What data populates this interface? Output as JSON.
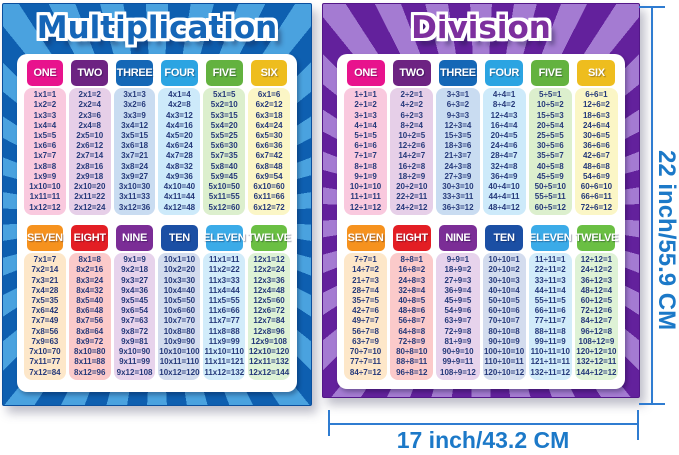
{
  "annotations": {
    "height_label": "22 inch/55.9 CM",
    "width_label": "17 inch/43.2 CM",
    "label_color": "#1c79c8",
    "line_color": "#2f7cd1"
  },
  "posters": [
    {
      "title": "Multiplication",
      "colors": {
        "title": "#1566b8",
        "ray_dark": "#0e5fb0",
        "ray_light": "#4aa2df",
        "edge": "#0a4f9e"
      },
      "sections": [
        {
          "columns": [
            {
              "header": "ONE",
              "header_bg": "#e8138d",
              "body_bg": "#f9c9de",
              "cells": [
                "1x1=1",
                "1x2=2",
                "1x3=3",
                "1x4=4",
                "1x5=5",
                "1x6=6",
                "1x7=7",
                "1x8=8",
                "1x9=9",
                "1x10=10",
                "1x11=11",
                "1x12=12"
              ]
            },
            {
              "header": "TWO",
              "header_bg": "#6d2382",
              "body_bg": "#e6cfe8",
              "cells": [
                "2x1=2",
                "2x2=4",
                "2x3=6",
                "2x4=8",
                "2x5=10",
                "2x6=12",
                "2x7=14",
                "2x8=16",
                "2x9=18",
                "2x10=20",
                "2x11=22",
                "2x12=24"
              ]
            },
            {
              "header": "THREE",
              "header_bg": "#1467b6",
              "body_bg": "#c9dcf1",
              "cells": [
                "3x1=3",
                "3x2=6",
                "3x3=9",
                "3x4=12",
                "3x5=15",
                "3x6=18",
                "3x7=21",
                "3x8=24",
                "3x9=27",
                "3x10=30",
                "3x11=33",
                "3x12=36"
              ]
            },
            {
              "header": "FOUR",
              "header_bg": "#2ba4e2",
              "body_bg": "#cdeafa",
              "cells": [
                "4x1=4",
                "4x2=8",
                "4x3=12",
                "4x4=16",
                "4x5=20",
                "4x6=24",
                "4x7=28",
                "4x8=32",
                "4x9=36",
                "4x10=40",
                "4x11=44",
                "4x12=48"
              ]
            },
            {
              "header": "FIVE",
              "header_bg": "#63b23f",
              "body_bg": "#dcefcd",
              "cells": [
                "5x1=5",
                "5x2=10",
                "5x3=15",
                "5x4=20",
                "5x5=25",
                "5x6=30",
                "5x7=35",
                "5x8=40",
                "5x9=45",
                "5x10=50",
                "5x11=55",
                "5x12=60"
              ]
            },
            {
              "header": "SIX",
              "header_bg": "#eebd1e",
              "body_bg": "#fbf6c6",
              "cells": [
                "6x1=6",
                "6x2=12",
                "6x3=18",
                "6x4=24",
                "6x5=30",
                "6x6=36",
                "6x7=42",
                "6x8=48",
                "6x9=54",
                "6x10=60",
                "6x11=66",
                "6x12=72"
              ]
            }
          ]
        },
        {
          "columns": [
            {
              "header": "SEVEN",
              "header_bg": "#f6921e",
              "body_bg": "#fde7c9",
              "cells": [
                "7x1=7",
                "7x2=14",
                "7x3=21",
                "7x4=28",
                "7x5=35",
                "7x6=42",
                "7x7=49",
                "7x8=56",
                "7x9=63",
                "7x10=70",
                "7x11=77",
                "7x12=84"
              ]
            },
            {
              "header": "EIGHT",
              "header_bg": "#e31e24",
              "body_bg": "#fbcaca",
              "cells": [
                "8x1=8",
                "8x2=16",
                "8x3=24",
                "8x4=32",
                "8x5=40",
                "8x6=48",
                "8x7=56",
                "8x8=64",
                "8x9=72",
                "8x10=80",
                "8x11=88",
                "8x12=96"
              ]
            },
            {
              "header": "NINE",
              "header_bg": "#7b2d96",
              "body_bg": "#e7d3ec",
              "cells": [
                "9x1=9",
                "9x2=18",
                "9x3=27",
                "9x4=36",
                "9x5=45",
                "9x6=54",
                "9x7=63",
                "9x8=72",
                "9x9=81",
                "9x10=90",
                "9x11=99",
                "9x12=108"
              ]
            },
            {
              "header": "TEN",
              "header_bg": "#1b4fa4",
              "body_bg": "#d3dcee",
              "cells": [
                "10x1=10",
                "10x2=20",
                "10x3=30",
                "10x4=40",
                "10x5=50",
                "10x6=60",
                "10x7=70",
                "10x8=80",
                "10x9=90",
                "10x10=100",
                "10x11=110",
                "10x12=120"
              ]
            },
            {
              "header": "ELEVEN",
              "header_bg": "#3babe8",
              "body_bg": "#d2ecfa",
              "cells": [
                "11x1=11",
                "11x2=22",
                "11x3=33",
                "11x4=44",
                "11x5=55",
                "11x6=66",
                "11x7=77",
                "11x8=88",
                "11x9=99",
                "11x10=110",
                "11x11=121",
                "11x12=132"
              ]
            },
            {
              "header": "TWELVE",
              "header_bg": "#6abf43",
              "body_bg": "#def2d6",
              "cells": [
                "12x1=12",
                "12x2=24",
                "12x3=36",
                "12x4=48",
                "12x5=60",
                "12x6=72",
                "12x7=84",
                "12x8=96",
                "12x9=108",
                "12x10=120",
                "12x11=132",
                "12x12=144"
              ]
            }
          ]
        }
      ]
    },
    {
      "title": "Division",
      "colors": {
        "title": "#7d2f9e",
        "ray_dark": "#63219c",
        "ray_light": "#a47bd2",
        "edge": "#531788"
      },
      "sections": [
        {
          "columns": [
            {
              "header": "ONE",
              "header_bg": "#e8138d",
              "body_bg": "#f9c9de",
              "cells": [
                "1÷1=1",
                "2÷1=2",
                "3÷1=3",
                "4÷1=4",
                "5÷1=5",
                "6÷1=6",
                "7÷1=7",
                "8÷1=8",
                "9÷1=9",
                "10÷1=10",
                "11÷1=11",
                "12÷1=12"
              ]
            },
            {
              "header": "TWO",
              "header_bg": "#6d2382",
              "body_bg": "#e6cfe8",
              "cells": [
                "2÷2=1",
                "4÷2=2",
                "6÷2=3",
                "8÷2=4",
                "10÷2=5",
                "12÷2=6",
                "14÷2=7",
                "16÷2=8",
                "18÷2=9",
                "20÷2=10",
                "22÷2=11",
                "24÷2=12"
              ]
            },
            {
              "header": "THREE",
              "header_bg": "#1467b6",
              "body_bg": "#c9dcf1",
              "cells": [
                "3÷3=1",
                "6÷3=2",
                "9÷3=3",
                "12÷3=4",
                "15÷3=5",
                "18÷3=6",
                "21÷3=7",
                "24÷3=8",
                "27÷3=9",
                "30÷3=10",
                "33÷3=11",
                "36÷3=12"
              ]
            },
            {
              "header": "FOUR",
              "header_bg": "#2ba4e2",
              "body_bg": "#cdeafa",
              "cells": [
                "4÷4=1",
                "8÷4=2",
                "12÷4=3",
                "16÷4=4",
                "20÷4=5",
                "24÷4=6",
                "28÷4=7",
                "32÷4=8",
                "36÷4=9",
                "40÷4=10",
                "44÷4=11",
                "48÷4=12"
              ]
            },
            {
              "header": "FIVE",
              "header_bg": "#63b23f",
              "body_bg": "#dcefcd",
              "cells": [
                "5÷5=1",
                "10÷5=2",
                "15÷5=3",
                "20÷5=4",
                "25÷5=5",
                "30÷5=6",
                "35÷5=7",
                "40÷5=8",
                "45÷5=9",
                "50÷5=10",
                "55÷5=11",
                "60÷5=12"
              ]
            },
            {
              "header": "SIX",
              "header_bg": "#eebd1e",
              "body_bg": "#fbf6c6",
              "cells": [
                "6÷6=1",
                "12÷6=2",
                "18÷6=3",
                "24÷6=4",
                "30÷6=5",
                "36÷6=6",
                "42÷6=7",
                "48÷6=8",
                "54÷6=9",
                "60÷6=10",
                "66÷6=11",
                "72÷6=12"
              ]
            }
          ]
        },
        {
          "columns": [
            {
              "header": "SEVEN",
              "header_bg": "#f6921e",
              "body_bg": "#fde7c9",
              "cells": [
                "7÷7=1",
                "14÷7=2",
                "21÷7=3",
                "28÷7=4",
                "35÷7=5",
                "42÷7=6",
                "49÷7=7",
                "56÷7=8",
                "63÷7=9",
                "70÷7=10",
                "77÷7=11",
                "84÷7=12"
              ]
            },
            {
              "header": "EIGHT",
              "header_bg": "#e31e24",
              "body_bg": "#fbcaca",
              "cells": [
                "8÷8=1",
                "16÷8=2",
                "24÷8=3",
                "32÷8=4",
                "40÷8=5",
                "48÷8=6",
                "56÷8=7",
                "64÷8=8",
                "72÷8=9",
                "80÷8=10",
                "88÷8=11",
                "96÷8=12"
              ]
            },
            {
              "header": "NINE",
              "header_bg": "#7b2d96",
              "body_bg": "#e7d3ec",
              "cells": [
                "9÷9=1",
                "18÷9=2",
                "27÷9=3",
                "36÷9=4",
                "45÷9=5",
                "54÷9=6",
                "63÷9=7",
                "72÷9=8",
                "81÷9=9",
                "90÷9=10",
                "99÷9=11",
                "108÷9=12"
              ]
            },
            {
              "header": "TEN",
              "header_bg": "#1b4fa4",
              "body_bg": "#d3dcee",
              "cells": [
                "10÷10=1",
                "20÷10=2",
                "30÷10=3",
                "40÷10=4",
                "50÷10=5",
                "60÷10=6",
                "70÷10=7",
                "80÷10=8",
                "90÷10=9",
                "100÷10=10",
                "110÷10=11",
                "120÷10=12"
              ]
            },
            {
              "header": "ELEVEN",
              "header_bg": "#3babe8",
              "body_bg": "#d2ecfa",
              "cells": [
                "11÷11=1",
                "22÷11=2",
                "33÷11=3",
                "44÷11=4",
                "55÷11=5",
                "66÷11=6",
                "77÷11=7",
                "88÷11=8",
                "99÷11=9",
                "110÷11=10",
                "121÷11=11",
                "132÷11=12"
              ]
            },
            {
              "header": "TWELVE",
              "header_bg": "#6abf43",
              "body_bg": "#def2d6",
              "cells": [
                "12÷12=1",
                "24÷12=2",
                "36÷12=3",
                "48÷12=4",
                "60÷12=5",
                "72÷12=6",
                "84÷12=7",
                "96÷12=8",
                "108÷12=9",
                "120÷12=10",
                "132÷12=11",
                "144÷12=12"
              ]
            }
          ]
        }
      ]
    }
  ]
}
